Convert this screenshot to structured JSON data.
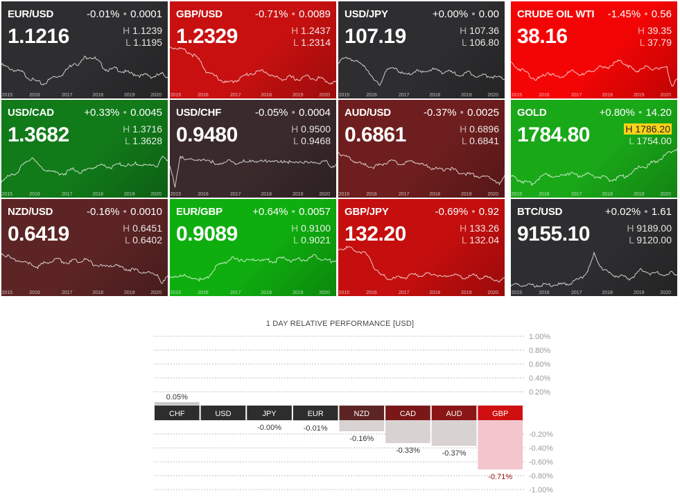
{
  "tiles": [
    {
      "symbol": "EUR/USD",
      "change_pct": "-0.01%",
      "change_abs": "0.0001",
      "price": "1.1216",
      "high": "1.1239",
      "low": "1.1195",
      "bg": "#2e2e30",
      "high_highlight": false,
      "series": [
        0.55,
        0.5,
        0.46,
        0.42,
        0.4,
        0.3,
        0.24,
        0.2,
        0.15,
        0.22,
        0.3,
        0.32,
        0.38,
        0.5,
        0.6,
        0.56,
        0.7,
        0.72,
        0.68,
        0.58,
        0.46,
        0.44,
        0.48,
        0.42,
        0.4,
        0.37,
        0.35,
        0.32,
        0.35,
        0.3,
        0.33,
        0.36,
        0.3
      ]
    },
    {
      "symbol": "GBP/USD",
      "change_pct": "-0.71%",
      "change_abs": "0.0089",
      "price": "1.2329",
      "high": "1.2437",
      "low": "1.2314",
      "bg": "#c81010",
      "high_highlight": false,
      "series": [
        0.92,
        0.9,
        0.88,
        0.84,
        0.78,
        0.72,
        0.6,
        0.42,
        0.35,
        0.3,
        0.22,
        0.18,
        0.2,
        0.24,
        0.3,
        0.36,
        0.38,
        0.4,
        0.44,
        0.36,
        0.3,
        0.28,
        0.25,
        0.3,
        0.27,
        0.24,
        0.32,
        0.3,
        0.26,
        0.28,
        0.22,
        0.18,
        0.2
      ]
    },
    {
      "symbol": "USD/JPY",
      "change_pct": "+0.00%",
      "change_abs": "0.00",
      "price": "107.19",
      "high": "107.36",
      "low": "106.80",
      "bg": "#2e2e30",
      "high_highlight": false,
      "series": [
        0.62,
        0.66,
        0.7,
        0.64,
        0.58,
        0.54,
        0.4,
        0.2,
        0.15,
        0.4,
        0.46,
        0.5,
        0.38,
        0.34,
        0.36,
        0.44,
        0.38,
        0.42,
        0.46,
        0.44,
        0.4,
        0.42,
        0.38,
        0.36,
        0.34,
        0.4,
        0.36,
        0.3,
        0.34,
        0.32,
        0.3,
        0.28,
        0.26
      ]
    },
    {
      "symbol": "CRUDE OIL WTI",
      "change_pct": "-1.45%",
      "change_abs": "0.56",
      "price": "38.16",
      "high": "39.35",
      "low": "37.79",
      "bg": "#f40505",
      "high_highlight": false,
      "series": [
        0.6,
        0.5,
        0.45,
        0.4,
        0.3,
        0.25,
        0.3,
        0.4,
        0.35,
        0.3,
        0.32,
        0.38,
        0.42,
        0.36,
        0.34,
        0.4,
        0.45,
        0.5,
        0.48,
        0.52,
        0.6,
        0.62,
        0.58,
        0.5,
        0.4,
        0.48,
        0.5,
        0.44,
        0.5,
        0.46,
        0.48,
        0.12,
        0.25
      ]
    },
    {
      "symbol": "USD/CAD",
      "change_pct": "+0.33%",
      "change_abs": "0.0045",
      "price": "1.3682",
      "high": "1.3716",
      "low": "1.3628",
      "bg": "#117a19",
      "high_highlight": false,
      "series": [
        0.2,
        0.26,
        0.32,
        0.38,
        0.5,
        0.58,
        0.7,
        0.52,
        0.44,
        0.42,
        0.38,
        0.36,
        0.34,
        0.4,
        0.44,
        0.38,
        0.4,
        0.46,
        0.48,
        0.52,
        0.5,
        0.48,
        0.5,
        0.54,
        0.52,
        0.5,
        0.56,
        0.52,
        0.5,
        0.54,
        0.5,
        0.68,
        0.62
      ]
    },
    {
      "symbol": "USD/CHF",
      "change_pct": "-0.05%",
      "change_abs": "0.0004",
      "price": "0.9480",
      "high": "0.9500",
      "low": "0.9468",
      "bg": "#3a2a2b",
      "high_highlight": false,
      "series": [
        0.5,
        0.1,
        0.7,
        0.6,
        0.66,
        0.62,
        0.58,
        0.64,
        0.6,
        0.5,
        0.56,
        0.62,
        0.58,
        0.55,
        0.6,
        0.56,
        0.62,
        0.6,
        0.58,
        0.63,
        0.6,
        0.56,
        0.62,
        0.58,
        0.56,
        0.6,
        0.58,
        0.55,
        0.6,
        0.56,
        0.58,
        0.5,
        0.52
      ]
    },
    {
      "symbol": "AUD/USD",
      "change_pct": "-0.37%",
      "change_abs": "0.0025",
      "price": "0.6861",
      "high": "0.6896",
      "low": "0.6841",
      "bg": "#6e1e1e",
      "high_highlight": false,
      "series": [
        0.78,
        0.72,
        0.66,
        0.6,
        0.56,
        0.52,
        0.5,
        0.48,
        0.52,
        0.56,
        0.6,
        0.58,
        0.54,
        0.56,
        0.6,
        0.58,
        0.54,
        0.5,
        0.46,
        0.44,
        0.42,
        0.46,
        0.44,
        0.38,
        0.36,
        0.34,
        0.32,
        0.3,
        0.28,
        0.26,
        0.24,
        0.1,
        0.3
      ]
    },
    {
      "symbol": "GOLD",
      "change_pct": "+0.80%",
      "change_abs": "14.20",
      "price": "1784.80",
      "high": "1786.20",
      "low": "1754.00",
      "bg": "#19a818",
      "high_highlight": true,
      "series": [
        0.3,
        0.24,
        0.2,
        0.16,
        0.14,
        0.22,
        0.3,
        0.34,
        0.3,
        0.28,
        0.32,
        0.36,
        0.34,
        0.3,
        0.32,
        0.34,
        0.3,
        0.28,
        0.26,
        0.22,
        0.24,
        0.28,
        0.3,
        0.34,
        0.42,
        0.5,
        0.48,
        0.56,
        0.6,
        0.66,
        0.74,
        0.8,
        0.86
      ]
    },
    {
      "symbol": "NZD/USD",
      "change_pct": "-0.16%",
      "change_abs": "0.0010",
      "price": "0.6419",
      "high": "0.6451",
      "low": "0.6402",
      "bg": "#5c2424",
      "high_highlight": false,
      "series": [
        0.74,
        0.7,
        0.62,
        0.6,
        0.56,
        0.52,
        0.5,
        0.46,
        0.52,
        0.56,
        0.58,
        0.62,
        0.56,
        0.54,
        0.6,
        0.58,
        0.62,
        0.56,
        0.5,
        0.48,
        0.46,
        0.5,
        0.48,
        0.44,
        0.42,
        0.4,
        0.38,
        0.36,
        0.34,
        0.32,
        0.3,
        0.12,
        0.26
      ]
    },
    {
      "symbol": "EUR/GBP",
      "change_pct": "+0.64%",
      "change_abs": "0.0057",
      "price": "0.9089",
      "high": "0.9100",
      "low": "0.9021",
      "bg": "#0fae0f",
      "high_highlight": false,
      "series": [
        0.22,
        0.24,
        0.3,
        0.26,
        0.22,
        0.24,
        0.18,
        0.2,
        0.34,
        0.46,
        0.52,
        0.58,
        0.64,
        0.6,
        0.62,
        0.58,
        0.6,
        0.62,
        0.58,
        0.6,
        0.56,
        0.62,
        0.64,
        0.6,
        0.58,
        0.62,
        0.6,
        0.64,
        0.7,
        0.62,
        0.6,
        0.58,
        0.6
      ]
    },
    {
      "symbol": "GBP/JPY",
      "change_pct": "-0.69%",
      "change_abs": "0.92",
      "price": "132.20",
      "high": "133.26",
      "low": "132.04",
      "bg": "#c50e0e",
      "high_highlight": false,
      "series": [
        0.82,
        0.84,
        0.86,
        0.8,
        0.78,
        0.74,
        0.66,
        0.42,
        0.3,
        0.26,
        0.2,
        0.22,
        0.26,
        0.24,
        0.28,
        0.3,
        0.28,
        0.3,
        0.32,
        0.3,
        0.26,
        0.28,
        0.3,
        0.26,
        0.24,
        0.26,
        0.28,
        0.24,
        0.26,
        0.22,
        0.2,
        0.18,
        0.2
      ]
    },
    {
      "symbol": "BTC/USD",
      "change_pct": "+0.02%",
      "change_abs": "1.61",
      "price": "9155.10",
      "high": "9189.00",
      "low": "9120.00",
      "bg": "#2e2e30",
      "high_highlight": false,
      "series": [
        0.08,
        0.08,
        0.08,
        0.08,
        0.08,
        0.08,
        0.08,
        0.08,
        0.08,
        0.09,
        0.1,
        0.12,
        0.14,
        0.2,
        0.28,
        0.42,
        0.72,
        0.5,
        0.4,
        0.32,
        0.28,
        0.26,
        0.24,
        0.22,
        0.3,
        0.4,
        0.36,
        0.32,
        0.34,
        0.3,
        0.28,
        0.34,
        0.3
      ]
    }
  ],
  "years": [
    "2015",
    "2016",
    "2017",
    "2018",
    "2019",
    "2020"
  ],
  "perf": {
    "title": "1 DAY RELATIVE PERFORMANCE  [USD]",
    "axis_ticks_top": [
      "1.00%",
      "0.80%",
      "0.60%",
      "0.40%",
      "0.20%"
    ],
    "axis_ticks_bottom": [
      "-0.20%",
      "-0.40%",
      "-0.60%",
      "-0.80%",
      "-1.00%"
    ],
    "bars": [
      {
        "currency": "CHF",
        "value": 0.05,
        "label": "0.05%",
        "head_color": "#2d2d2d"
      },
      {
        "currency": "USD",
        "value": 0.0,
        "label": "",
        "head_color": "#2d2d2d"
      },
      {
        "currency": "JPY",
        "value": -0.0,
        "label": "-0.00%",
        "head_color": "#2d2d2d"
      },
      {
        "currency": "EUR",
        "value": -0.01,
        "label": "-0.01%",
        "head_color": "#2d2d2d"
      },
      {
        "currency": "NZD",
        "value": -0.16,
        "label": "-0.16%",
        "head_color": "#5c2424"
      },
      {
        "currency": "CAD",
        "value": -0.33,
        "label": "-0.33%",
        "head_color": "#7a1818"
      },
      {
        "currency": "AUD",
        "value": -0.37,
        "label": "-0.37%",
        "head_color": "#8a1616"
      },
      {
        "currency": "GBP",
        "value": -0.71,
        "label": "-0.71%",
        "head_color": "#d01010"
      }
    ]
  }
}
